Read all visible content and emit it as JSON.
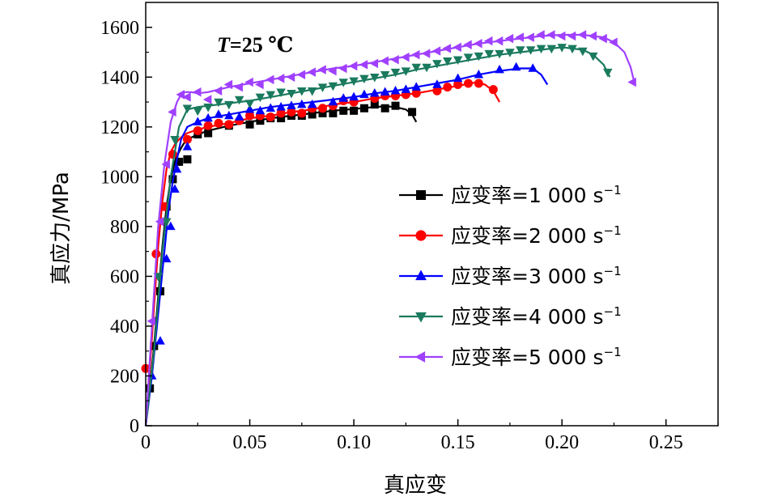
{
  "chart_data": {
    "type": "line",
    "xlabel": "真应变",
    "ylabel": "真应力/MPa",
    "xlim": [
      0,
      0.275
    ],
    "ylim": [
      0,
      1700
    ],
    "xticks": [
      0,
      0.05,
      0.1,
      0.15,
      0.2,
      0.25
    ],
    "xtick_labels": [
      "0",
      "0.05",
      "0.10",
      "0.15",
      "0.20",
      "0.25"
    ],
    "yticks": [
      0,
      200,
      400,
      600,
      800,
      1000,
      1200,
      1400,
      1600
    ],
    "ytick_labels": [
      "0",
      "200",
      "400",
      "600",
      "800",
      "1000",
      "1200",
      "1400",
      "1600"
    ],
    "annotation": {
      "prefix": "T",
      "rest": "=25 ℃"
    },
    "legend_position": "center-right",
    "series": [
      {
        "name": "应变率=1 000 s",
        "exponent": "−1",
        "color": "#000000",
        "marker": "square",
        "x": [
          0,
          0.002,
          0.004,
          0.006,
          0.008,
          0.01,
          0.012,
          0.014,
          0.016,
          0.018,
          0.02,
          0.025,
          0.03,
          0.035,
          0.04,
          0.05,
          0.06,
          0.07,
          0.08,
          0.09,
          0.1,
          0.11,
          0.115,
          0.12,
          0.125,
          0.128,
          0.13
        ],
        "y": [
          0,
          150,
          320,
          520,
          720,
          880,
          990,
          1060,
          1100,
          1130,
          1150,
          1170,
          1185,
          1195,
          1205,
          1220,
          1235,
          1245,
          1255,
          1265,
          1272,
          1280,
          1283,
          1280,
          1270,
          1250,
          1220
        ],
        "markers": [
          [
            0.002,
            150
          ],
          [
            0.004,
            320
          ],
          [
            0.007,
            540
          ],
          [
            0.01,
            880
          ],
          [
            0.013,
            990
          ],
          [
            0.016,
            1060
          ],
          [
            0.02,
            1070
          ],
          [
            0.025,
            1170
          ],
          [
            0.03,
            1175
          ],
          [
            0.04,
            1205
          ],
          [
            0.05,
            1210
          ],
          [
            0.055,
            1225
          ],
          [
            0.06,
            1235
          ],
          [
            0.065,
            1235
          ],
          [
            0.07,
            1245
          ],
          [
            0.075,
            1245
          ],
          [
            0.08,
            1250
          ],
          [
            0.085,
            1255
          ],
          [
            0.09,
            1255
          ],
          [
            0.095,
            1265
          ],
          [
            0.1,
            1265
          ],
          [
            0.105,
            1275
          ],
          [
            0.11,
            1290
          ],
          [
            0.115,
            1275
          ],
          [
            0.12,
            1285
          ],
          [
            0.128,
            1260
          ]
        ]
      },
      {
        "name": "应变率=2 000 s",
        "exponent": "−1",
        "color": "#ff0000",
        "marker": "circle",
        "x": [
          0,
          0.002,
          0.004,
          0.006,
          0.008,
          0.01,
          0.012,
          0.014,
          0.016,
          0.018,
          0.02,
          0.025,
          0.03,
          0.04,
          0.05,
          0.06,
          0.07,
          0.08,
          0.09,
          0.1,
          0.11,
          0.12,
          0.13,
          0.14,
          0.15,
          0.158,
          0.163,
          0.167,
          0.17
        ],
        "y": [
          0,
          230,
          480,
          720,
          900,
          1030,
          1100,
          1130,
          1150,
          1165,
          1175,
          1190,
          1200,
          1215,
          1235,
          1245,
          1260,
          1270,
          1290,
          1300,
          1315,
          1325,
          1335,
          1350,
          1365,
          1378,
          1370,
          1345,
          1300
        ],
        "markers": [
          [
            0,
            230
          ],
          [
            0.005,
            690
          ],
          [
            0.009,
            880
          ],
          [
            0.013,
            1090
          ],
          [
            0.02,
            1150
          ],
          [
            0.025,
            1185
          ],
          [
            0.03,
            1205
          ],
          [
            0.035,
            1215
          ],
          [
            0.04,
            1210
          ],
          [
            0.045,
            1225
          ],
          [
            0.05,
            1245
          ],
          [
            0.055,
            1245
          ],
          [
            0.06,
            1240
          ],
          [
            0.065,
            1255
          ],
          [
            0.07,
            1260
          ],
          [
            0.075,
            1255
          ],
          [
            0.08,
            1275
          ],
          [
            0.085,
            1275
          ],
          [
            0.09,
            1285
          ],
          [
            0.095,
            1305
          ],
          [
            0.1,
            1300
          ],
          [
            0.11,
            1315
          ],
          [
            0.115,
            1325
          ],
          [
            0.12,
            1325
          ],
          [
            0.125,
            1330
          ],
          [
            0.13,
            1335
          ],
          [
            0.14,
            1345
          ],
          [
            0.145,
            1360
          ],
          [
            0.15,
            1370
          ],
          [
            0.155,
            1375
          ],
          [
            0.16,
            1375
          ],
          [
            0.167,
            1350
          ]
        ]
      },
      {
        "name": "应变率=3 000 s",
        "exponent": "−1",
        "color": "#0000ff",
        "marker": "triangle-up",
        "x": [
          0,
          0.003,
          0.006,
          0.009,
          0.011,
          0.013,
          0.015,
          0.017,
          0.02,
          0.025,
          0.03,
          0.04,
          0.05,
          0.06,
          0.07,
          0.08,
          0.09,
          0.1,
          0.11,
          0.12,
          0.13,
          0.14,
          0.15,
          0.16,
          0.17,
          0.18,
          0.186,
          0.19,
          0.193
        ],
        "y": [
          0,
          200,
          450,
          700,
          870,
          980,
          1070,
          1150,
          1200,
          1220,
          1235,
          1250,
          1265,
          1280,
          1290,
          1300,
          1310,
          1320,
          1335,
          1345,
          1360,
          1375,
          1390,
          1410,
          1425,
          1435,
          1435,
          1410,
          1370
        ],
        "markers": [
          [
            0.003,
            200
          ],
          [
            0.007,
            340
          ],
          [
            0.01,
            670
          ],
          [
            0.012,
            800
          ],
          [
            0.014,
            950
          ],
          [
            0.015,
            1030
          ],
          [
            0.02,
            1120
          ],
          [
            0.025,
            1220
          ],
          [
            0.03,
            1235
          ],
          [
            0.035,
            1250
          ],
          [
            0.04,
            1245
          ],
          [
            0.045,
            1240
          ],
          [
            0.05,
            1270
          ],
          [
            0.055,
            1265
          ],
          [
            0.06,
            1275
          ],
          [
            0.065,
            1280
          ],
          [
            0.07,
            1285
          ],
          [
            0.075,
            1290
          ],
          [
            0.08,
            1290
          ],
          [
            0.09,
            1300
          ],
          [
            0.095,
            1315
          ],
          [
            0.1,
            1320
          ],
          [
            0.105,
            1330
          ],
          [
            0.11,
            1335
          ],
          [
            0.115,
            1340
          ],
          [
            0.12,
            1345
          ],
          [
            0.125,
            1350
          ],
          [
            0.13,
            1360
          ],
          [
            0.14,
            1370
          ],
          [
            0.15,
            1395
          ],
          [
            0.16,
            1410
          ],
          [
            0.17,
            1430
          ],
          [
            0.178,
            1440
          ],
          [
            0.186,
            1435
          ]
        ]
      },
      {
        "name": "应变率=4 000 s",
        "exponent": "−1",
        "color": "#1a7a5e",
        "marker": "triangle-down",
        "x": [
          0,
          0.004,
          0.008,
          0.012,
          0.016,
          0.02,
          0.025,
          0.03,
          0.04,
          0.05,
          0.06,
          0.07,
          0.08,
          0.09,
          0.1,
          0.11,
          0.12,
          0.13,
          0.14,
          0.15,
          0.16,
          0.17,
          0.18,
          0.19,
          0.2,
          0.21,
          0.215,
          0.22,
          0.223
        ],
        "y": [
          0,
          300,
          700,
          1000,
          1200,
          1270,
          1280,
          1285,
          1295,
          1305,
          1320,
          1335,
          1350,
          1365,
          1380,
          1395,
          1410,
          1430,
          1445,
          1460,
          1475,
          1490,
          1500,
          1510,
          1520,
          1510,
          1490,
          1450,
          1400
        ],
        "markers": [
          [
            0.006,
            600
          ],
          [
            0.01,
            820
          ],
          [
            0.014,
            1150
          ],
          [
            0.02,
            1275
          ],
          [
            0.025,
            1265
          ],
          [
            0.03,
            1280
          ],
          [
            0.035,
            1300
          ],
          [
            0.04,
            1290
          ],
          [
            0.045,
            1310
          ],
          [
            0.05,
            1295
          ],
          [
            0.055,
            1320
          ],
          [
            0.06,
            1330
          ],
          [
            0.065,
            1340
          ],
          [
            0.07,
            1335
          ],
          [
            0.075,
            1345
          ],
          [
            0.08,
            1345
          ],
          [
            0.085,
            1360
          ],
          [
            0.09,
            1365
          ],
          [
            0.095,
            1380
          ],
          [
            0.1,
            1385
          ],
          [
            0.105,
            1395
          ],
          [
            0.11,
            1400
          ],
          [
            0.115,
            1410
          ],
          [
            0.12,
            1420
          ],
          [
            0.125,
            1425
          ],
          [
            0.13,
            1440
          ],
          [
            0.135,
            1440
          ],
          [
            0.14,
            1455
          ],
          [
            0.145,
            1465
          ],
          [
            0.15,
            1470
          ],
          [
            0.155,
            1480
          ],
          [
            0.16,
            1485
          ],
          [
            0.165,
            1495
          ],
          [
            0.17,
            1495
          ],
          [
            0.175,
            1500
          ],
          [
            0.18,
            1510
          ],
          [
            0.185,
            1510
          ],
          [
            0.19,
            1515
          ],
          [
            0.195,
            1515
          ],
          [
            0.2,
            1520
          ],
          [
            0.205,
            1515
          ],
          [
            0.21,
            1505
          ],
          [
            0.215,
            1485
          ],
          [
            0.222,
            1420
          ]
        ]
      },
      {
        "name": "应变率=5 000 s",
        "exponent": "−1",
        "color": "#a040ff",
        "marker": "triangle-left",
        "x": [
          0,
          0.003,
          0.006,
          0.009,
          0.012,
          0.015,
          0.017,
          0.019,
          0.022,
          0.025,
          0.03,
          0.04,
          0.05,
          0.06,
          0.07,
          0.08,
          0.09,
          0.1,
          0.11,
          0.12,
          0.13,
          0.14,
          0.15,
          0.16,
          0.17,
          0.18,
          0.19,
          0.2,
          0.21,
          0.22,
          0.225,
          0.23,
          0.233,
          0.235
        ],
        "y": [
          0,
          400,
          800,
          1050,
          1220,
          1300,
          1330,
          1340,
          1340,
          1335,
          1340,
          1360,
          1375,
          1390,
          1405,
          1420,
          1435,
          1445,
          1460,
          1475,
          1490,
          1505,
          1520,
          1535,
          1545,
          1555,
          1565,
          1570,
          1570,
          1560,
          1540,
          1500,
          1440,
          1370
        ],
        "markers": [
          [
            0.003,
            420
          ],
          [
            0.007,
            820
          ],
          [
            0.01,
            1050
          ],
          [
            0.013,
            1260
          ],
          [
            0.017,
            1330
          ],
          [
            0.02,
            1320
          ],
          [
            0.025,
            1340
          ],
          [
            0.03,
            1310
          ],
          [
            0.035,
            1345
          ],
          [
            0.04,
            1370
          ],
          [
            0.045,
            1360
          ],
          [
            0.05,
            1380
          ],
          [
            0.055,
            1370
          ],
          [
            0.06,
            1390
          ],
          [
            0.065,
            1395
          ],
          [
            0.07,
            1400
          ],
          [
            0.075,
            1410
          ],
          [
            0.08,
            1420
          ],
          [
            0.085,
            1430
          ],
          [
            0.09,
            1425
          ],
          [
            0.095,
            1435
          ],
          [
            0.1,
            1445
          ],
          [
            0.105,
            1450
          ],
          [
            0.11,
            1455
          ],
          [
            0.115,
            1465
          ],
          [
            0.12,
            1470
          ],
          [
            0.125,
            1480
          ],
          [
            0.13,
            1490
          ],
          [
            0.135,
            1495
          ],
          [
            0.14,
            1505
          ],
          [
            0.145,
            1515
          ],
          [
            0.15,
            1520
          ],
          [
            0.155,
            1530
          ],
          [
            0.16,
            1535
          ],
          [
            0.165,
            1545
          ],
          [
            0.17,
            1545
          ],
          [
            0.175,
            1555
          ],
          [
            0.18,
            1560
          ],
          [
            0.185,
            1560
          ],
          [
            0.19,
            1570
          ],
          [
            0.195,
            1570
          ],
          [
            0.2,
            1565
          ],
          [
            0.205,
            1565
          ],
          [
            0.21,
            1570
          ],
          [
            0.215,
            1565
          ],
          [
            0.22,
            1555
          ],
          [
            0.225,
            1540
          ],
          [
            0.234,
            1380
          ]
        ]
      }
    ]
  }
}
